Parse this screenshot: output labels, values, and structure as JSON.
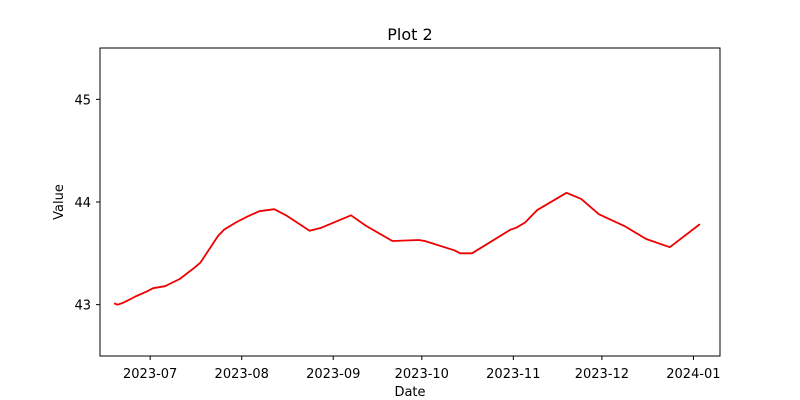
{
  "chart_data": {
    "type": "line",
    "title": "Plot 2",
    "xlabel": "Date",
    "ylabel": "Value",
    "xlim": [
      "2023-06-14",
      "2024-01-10"
    ],
    "ylim": [
      42.5,
      45.5
    ],
    "x_ticks": [
      "2023-07",
      "2023-08",
      "2023-09",
      "2023-10",
      "2023-11",
      "2023-12",
      "2024-01"
    ],
    "y_ticks": [
      43,
      44,
      45
    ],
    "grid": false,
    "legend": "none",
    "series": [
      {
        "color": "#ee0000",
        "x": [
          "2023-06-19",
          "2023-06-20",
          "2023-06-22",
          "2023-06-26",
          "2023-06-30",
          "2023-07-02",
          "2023-07-06",
          "2023-07-11",
          "2023-07-16",
          "2023-07-18",
          "2023-07-24",
          "2023-07-26",
          "2023-07-30",
          "2023-08-03",
          "2023-08-07",
          "2023-08-12",
          "2023-08-16",
          "2023-08-24",
          "2023-08-28",
          "2023-09-07",
          "2023-09-12",
          "2023-09-21",
          "2023-09-30",
          "2023-10-02",
          "2023-10-12",
          "2023-10-14",
          "2023-10-18",
          "2023-10-31",
          "2023-11-02",
          "2023-11-05",
          "2023-11-09",
          "2023-11-19",
          "2023-11-24",
          "2023-11-30",
          "2023-12-09",
          "2023-12-16",
          "2023-12-24",
          "2024-01-03"
        ],
        "y": [
          43.01,
          43.0,
          43.02,
          43.08,
          43.13,
          43.16,
          43.18,
          43.25,
          43.36,
          43.41,
          43.67,
          43.73,
          43.8,
          43.86,
          43.91,
          43.93,
          43.87,
          43.72,
          43.75,
          43.87,
          43.77,
          43.62,
          43.63,
          43.62,
          43.53,
          43.5,
          43.5,
          43.73,
          43.75,
          43.8,
          43.92,
          44.09,
          44.03,
          43.88,
          43.76,
          43.64,
          43.56,
          43.78
        ]
      }
    ]
  }
}
